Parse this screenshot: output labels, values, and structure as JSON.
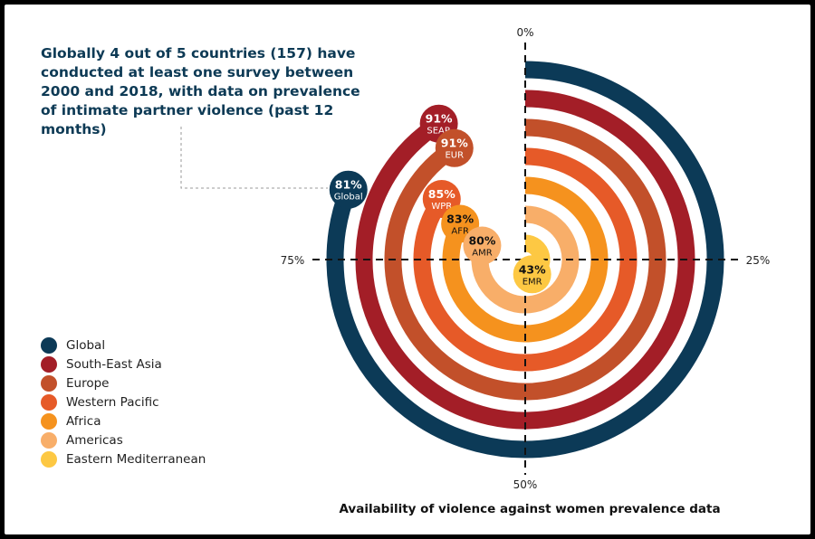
{
  "annotation": "Globally 4 out of 5 countries (157) have conducted at least one survey between 2000 and 2018, with data on prevalence of intimate partner violence (past 12 months)",
  "chart_data": {
    "type": "radial-bar",
    "title": "Availability of violence against women prevalence data",
    "axis_ticks": [
      "0%",
      "25%",
      "50%",
      "75%"
    ],
    "range": [
      0,
      100
    ],
    "legend_position": "bottom-left",
    "series": [
      {
        "name": "Global",
        "code": "Global",
        "value": 81,
        "color": "#0c3a57"
      },
      {
        "name": "South-East Asia",
        "code": "SEAR",
        "value": 91,
        "color": "#a31e27"
      },
      {
        "name": "Europe",
        "code": "EUR",
        "value": 91,
        "color": "#c2502a"
      },
      {
        "name": "Western Pacific",
        "code": "WPR",
        "value": 85,
        "color": "#e65a28"
      },
      {
        "name": "Africa",
        "code": "AFR",
        "value": 83,
        "color": "#f5921e"
      },
      {
        "name": "Americas",
        "code": "AMR",
        "value": 80,
        "color": "#f8ae69"
      },
      {
        "name": "Eastern Mediterranean",
        "code": "EMR",
        "value": 43,
        "color": "#fdc843"
      }
    ]
  }
}
